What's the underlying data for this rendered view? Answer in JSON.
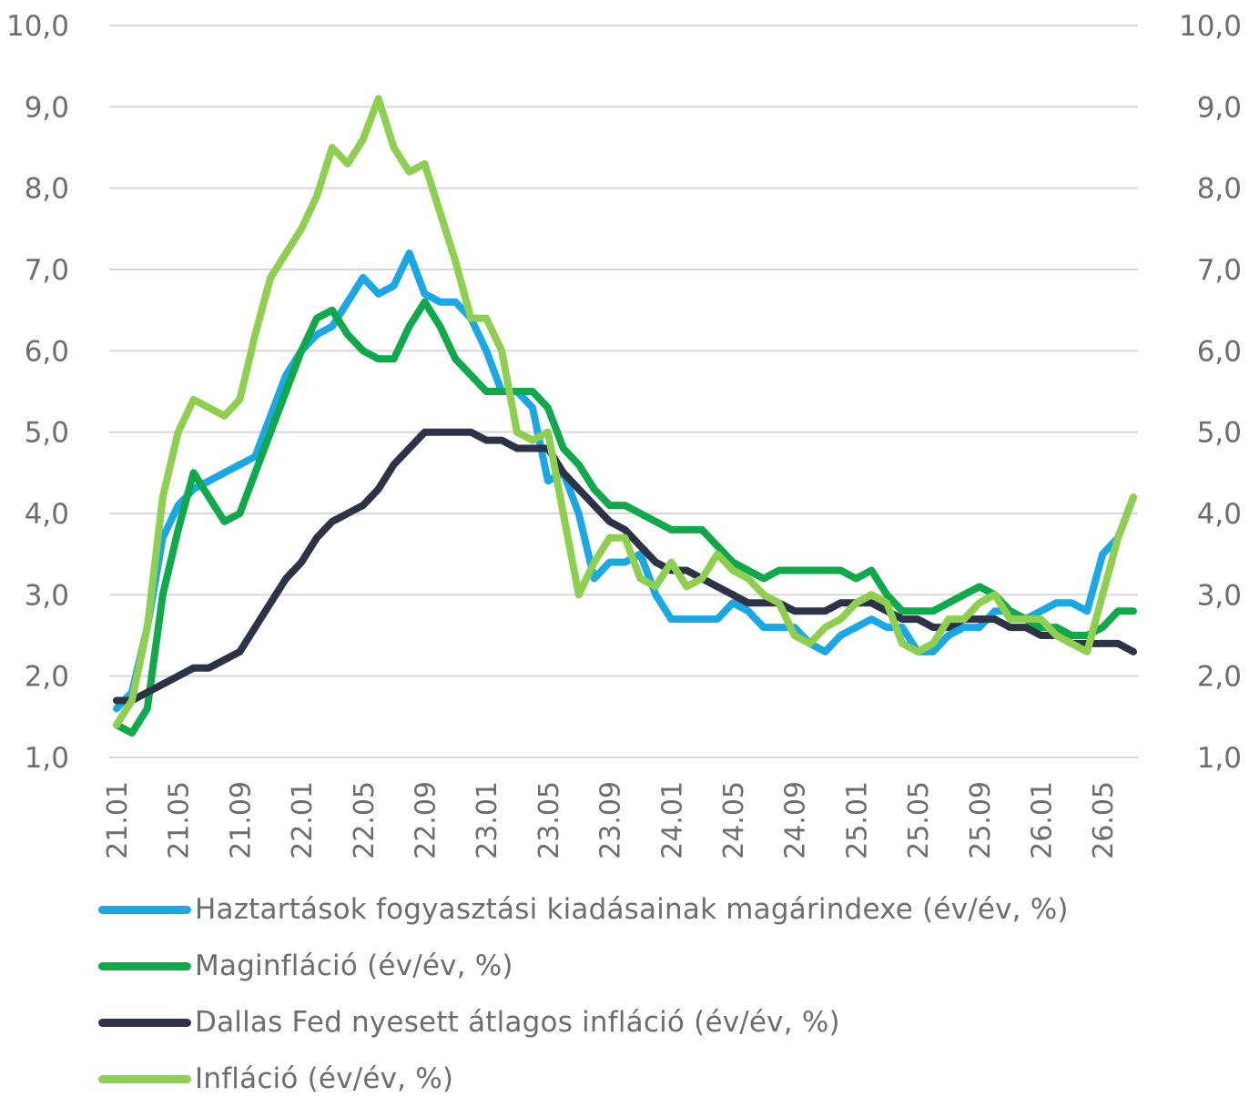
{
  "chart_data": {
    "type": "line",
    "y_left": {
      "min": 1.0,
      "max": 10.0,
      "ticks": [
        "10,0",
        "9,0",
        "8,0",
        "7,0",
        "6,0",
        "5,0",
        "4,0",
        "3,0",
        "2,0",
        "1,0"
      ]
    },
    "y_right": {
      "min": 1.0,
      "max": 10.0,
      "ticks": [
        "10,0",
        "9,0",
        "8,0",
        "7,0",
        "6,0",
        "5,0",
        "4,0",
        "3,0",
        "2,0",
        "1,0"
      ]
    },
    "x_tick_labels": [
      "21.01",
      "21.05",
      "21.09",
      "22.01",
      "22.05",
      "22.09",
      "23.01",
      "23.05",
      "23.09",
      "24.01",
      "24.05",
      "24.09",
      "25.01",
      "25.05",
      "25.09",
      "26.01",
      "26.05"
    ],
    "x_range": [
      "2021-01",
      "2026-05"
    ],
    "grid": "horizontal",
    "legend_position": "bottom",
    "series": [
      {
        "name": "Haztartások fogyasztási kiadásainak magárindexe (év/év, %)",
        "color": "#1aa7e6",
        "values": [
          1.6,
          1.8,
          2.6,
          3.7,
          4.1,
          4.3,
          4.4,
          4.5,
          4.6,
          4.7,
          5.2,
          5.7,
          6.0,
          6.2,
          6.3,
          6.6,
          6.9,
          6.7,
          6.8,
          7.2,
          6.7,
          6.6,
          6.6,
          6.4,
          6.0,
          5.5,
          5.5,
          5.3,
          4.4,
          4.5,
          4.0,
          3.2,
          3.4,
          3.4,
          3.5,
          3.0,
          2.7,
          2.7,
          2.7,
          2.7,
          2.9,
          2.8,
          2.6,
          2.6,
          2.6,
          2.4,
          2.3,
          2.5,
          2.6,
          2.7,
          2.6,
          2.6,
          2.3,
          2.3,
          2.5,
          2.6,
          2.6,
          2.8,
          2.8,
          2.7,
          2.8,
          2.9,
          2.9,
          2.8,
          3.5,
          3.7,
          4.2
        ]
      },
      {
        "name": "Maginfláció (év/év, %)",
        "color": "#0fa84a",
        "values": [
          1.4,
          1.3,
          1.6,
          3.0,
          3.8,
          4.5,
          4.2,
          3.9,
          4.0,
          4.5,
          5.0,
          5.5,
          6.0,
          6.4,
          6.5,
          6.2,
          6.0,
          5.9,
          5.9,
          6.3,
          6.6,
          6.3,
          5.9,
          5.7,
          5.5,
          5.5,
          5.5,
          5.5,
          5.3,
          4.8,
          4.6,
          4.3,
          4.1,
          4.1,
          4.0,
          3.9,
          3.8,
          3.8,
          3.8,
          3.6,
          3.4,
          3.3,
          3.2,
          3.3,
          3.3,
          3.3,
          3.3,
          3.3,
          3.2,
          3.3,
          3.0,
          2.8,
          2.8,
          2.8,
          2.9,
          3.0,
          3.1,
          3.0,
          2.8,
          2.7,
          2.6,
          2.6,
          2.5,
          2.5,
          2.6,
          2.8,
          2.8
        ]
      },
      {
        "name": "Dallas Fed nyesett átlagos infláció (év/év, %)",
        "color": "#2d3347",
        "values": [
          1.7,
          1.7,
          1.8,
          1.9,
          2.0,
          2.1,
          2.1,
          2.2,
          2.3,
          2.6,
          2.9,
          3.2,
          3.4,
          3.7,
          3.9,
          4.0,
          4.1,
          4.3,
          4.6,
          4.8,
          5.0,
          5.0,
          5.0,
          5.0,
          4.9,
          4.9,
          4.8,
          4.8,
          4.8,
          4.5,
          4.3,
          4.1,
          3.9,
          3.8,
          3.6,
          3.4,
          3.3,
          3.3,
          3.2,
          3.1,
          3.0,
          2.9,
          2.9,
          2.9,
          2.8,
          2.8,
          2.8,
          2.9,
          2.9,
          2.9,
          2.8,
          2.7,
          2.7,
          2.6,
          2.6,
          2.7,
          2.7,
          2.7,
          2.6,
          2.6,
          2.5,
          2.5,
          2.4,
          2.4,
          2.4,
          2.4,
          2.3
        ]
      },
      {
        "name": "Infláció (év/év, %)",
        "color": "#8ecf4f",
        "values": [
          1.4,
          1.7,
          2.6,
          4.2,
          5.0,
          5.4,
          5.3,
          5.2,
          5.4,
          6.2,
          6.9,
          7.2,
          7.5,
          7.9,
          8.5,
          8.3,
          8.6,
          9.1,
          8.5,
          8.2,
          8.3,
          7.7,
          7.1,
          6.4,
          6.4,
          6.0,
          5.0,
          4.9,
          5.0,
          4.0,
          3.0,
          3.4,
          3.7,
          3.7,
          3.2,
          3.1,
          3.4,
          3.1,
          3.2,
          3.5,
          3.3,
          3.2,
          3.0,
          2.9,
          2.5,
          2.4,
          2.6,
          2.7,
          2.9,
          3.0,
          2.9,
          2.4,
          2.3,
          2.4,
          2.7,
          2.7,
          2.9,
          3.0,
          2.7,
          2.7,
          2.7,
          2.5,
          2.4,
          2.3,
          3.0,
          3.7,
          4.2
        ]
      }
    ]
  }
}
